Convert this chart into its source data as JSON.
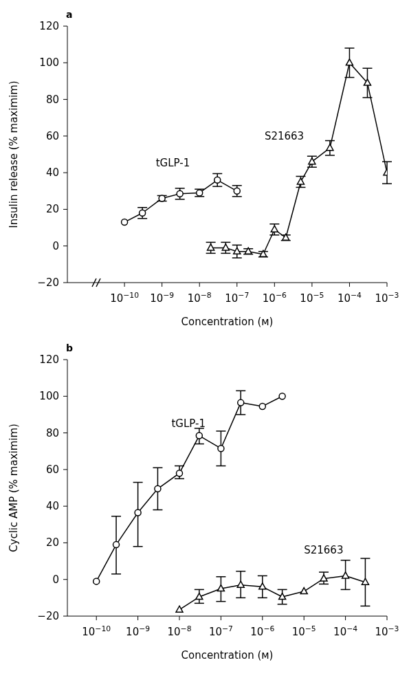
{
  "chart_data": [
    {
      "type": "line",
      "title": "a",
      "xlabel": "Concentration (ᴍ)",
      "ylabel": "Insulin release (% maximim)",
      "log": "x",
      "xlim": [
        3e-12,
        0.001
      ],
      "xticks": [
        {
          "value": 1e-10,
          "label": "10$^{−10}$"
        },
        {
          "value": 1e-09,
          "label": "10$^{−9}$"
        },
        {
          "value": 1e-08,
          "label": "10$^{−8}$"
        },
        {
          "value": 1e-07,
          "label": "10$^{−7}$"
        },
        {
          "value": 1e-06,
          "label": "10$^{−6}$"
        },
        {
          "value": 1e-05,
          "label": "10$^{−5}$"
        },
        {
          "value": 0.0001,
          "label": "10$^{−4}$"
        },
        {
          "value": 0.001,
          "label": "10$^{−3}$"
        }
      ],
      "ylim": [
        -20,
        120
      ],
      "yticks": [
        {
          "value": -20,
          "label": "−20"
        },
        0,
        20,
        40,
        60,
        80,
        100,
        120
      ],
      "series": [
        {
          "name": "tGLP-1",
          "color": "#000000",
          "marker": "circle",
          "x": [
            1e-10,
            3e-10,
            1e-09,
            3e-09,
            1e-08,
            3e-08,
            1e-07
          ],
          "values": [
            13,
            18,
            26,
            28.5,
            29,
            36,
            30
          ],
          "errors": [
            null,
            3,
            1.5,
            3,
            2,
            3.5,
            3
          ]
        },
        {
          "name": "S21663",
          "color": "#000000",
          "marker": "triangle",
          "x": [
            2e-08,
            5e-08,
            1e-07,
            2e-07,
            5e-07,
            1e-06,
            2e-06,
            5e-06,
            1e-05,
            3e-05,
            0.0001,
            0.0003,
            0.001
          ],
          "values": [
            -1,
            -1,
            -3,
            -3,
            -4.5,
            9,
            4.5,
            35,
            46,
            53.5,
            100,
            89,
            40
          ],
          "errors": [
            3,
            3,
            3.5,
            1.5,
            1.5,
            3,
            1.5,
            3,
            3,
            4,
            8,
            8,
            6
          ]
        }
      ]
    },
    {
      "type": "line",
      "title": "b",
      "xlabel": "Concentration (ᴍ)",
      "ylabel": "Cyclic AMP (% maximim)",
      "log": "x",
      "xlim": [
        2e-11,
        0.001
      ],
      "xticks": [
        {
          "value": 1e-10,
          "label": "10$^{−10}$"
        },
        {
          "value": 1e-09,
          "label": "10$^{−9}$"
        },
        {
          "value": 1e-08,
          "label": "10$^{−8}$"
        },
        {
          "value": 1e-07,
          "label": "10$^{−7}$"
        },
        {
          "value": 1e-06,
          "label": "10$^{−6}$"
        },
        {
          "value": 1e-05,
          "label": "10$^{−5}$"
        },
        {
          "value": 0.0001,
          "label": "10$^{−4}$"
        },
        {
          "value": 0.001,
          "label": "10$^{−3}$"
        }
      ],
      "ylim": [
        -20,
        120
      ],
      "yticks": [
        {
          "value": -20,
          "label": "−20"
        },
        0,
        20,
        40,
        60,
        80,
        100,
        120
      ],
      "series": [
        {
          "name": "tGLP-1",
          "color": "#000000",
          "marker": "circle",
          "x": [
            1e-10,
            3e-10,
            1e-09,
            3e-09,
            1e-08,
            3e-08,
            1e-07,
            3e-07,
            1e-06,
            3e-06
          ],
          "values": [
            -1,
            19,
            36.5,
            49.5,
            58,
            78.5,
            71.5,
            96.5,
            94.5,
            100
          ],
          "errors": [
            null,
            [
              3,
              34.5
            ],
            [
              18,
              53
            ],
            [
              38,
              61
            ],
            [
              55,
              62
            ],
            [
              74,
              82.5
            ],
            [
              62,
              81
            ],
            [
              90,
              103
            ],
            null,
            null
          ]
        },
        {
          "name": "S21663",
          "color": "#000000",
          "marker": "triangle",
          "x": [
            1e-08,
            3e-08,
            1e-07,
            3e-07,
            1e-06,
            3e-06,
            1e-05,
            3e-05,
            0.0001,
            0.0003
          ],
          "values": [
            -16.5,
            -9.5,
            -5,
            -3,
            -4,
            -9.5,
            -6.5,
            0.5,
            2,
            -1.5
          ],
          "errors": [
            null,
            [
              -13,
              -5.5
            ],
            [
              -12,
              1.5
            ],
            [
              -10,
              4.5
            ],
            [
              -10,
              2
            ],
            [
              -13.5,
              -5.5
            ],
            null,
            [
              -2.5,
              4
            ],
            [
              -5.5,
              10.5
            ],
            [
              -14.5,
              11.5
            ]
          ]
        }
      ]
    }
  ]
}
